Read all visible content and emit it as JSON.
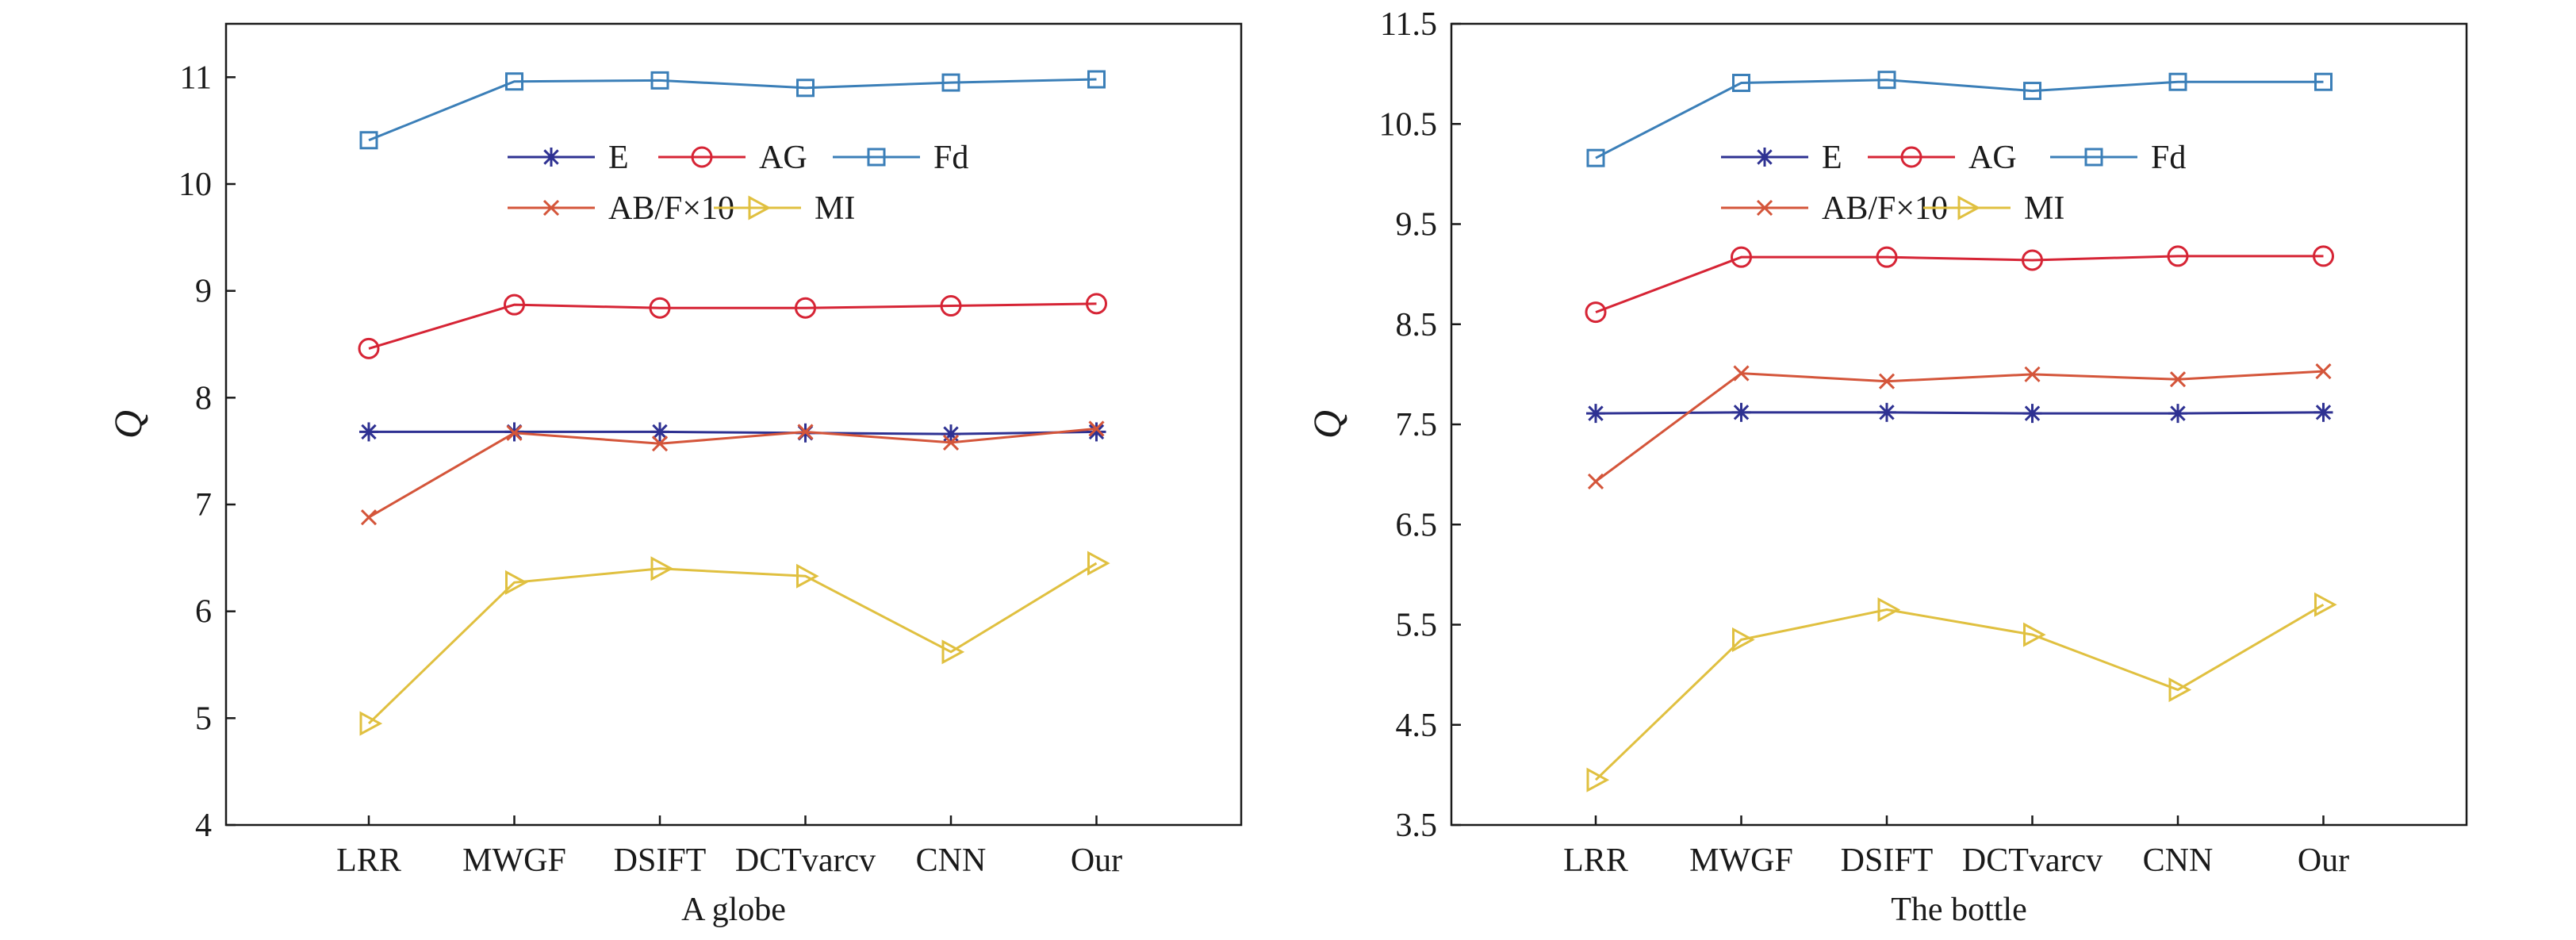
{
  "chart_data": [
    {
      "type": "line",
      "xlabel": "A globe",
      "ylabel": "Q",
      "categories": [
        "LRR",
        "MWGF",
        "DSIFT",
        "DCTvarcv",
        "CNN",
        "Our"
      ],
      "ylim": [
        4,
        11.5
      ],
      "yticks": [
        "4",
        "5",
        "6",
        "7",
        "8",
        "9",
        "10",
        "11"
      ],
      "ytick_values": [
        4,
        5,
        6,
        7,
        8,
        9,
        10,
        11
      ],
      "grid": false,
      "legend_position": "top-center",
      "series": [
        {
          "name": "E",
          "color": "#2e3192",
          "marker": "asterisk",
          "values": [
            7.68,
            7.68,
            7.68,
            7.67,
            7.66,
            7.68
          ]
        },
        {
          "name": "AG",
          "color": "#d62435",
          "marker": "circle",
          "values": [
            8.46,
            8.87,
            8.84,
            8.84,
            8.86,
            8.88
          ]
        },
        {
          "name": "Fd",
          "color": "#3b7fb8",
          "marker": "square",
          "values": [
            10.41,
            10.96,
            10.97,
            10.9,
            10.95,
            10.98
          ]
        },
        {
          "name": "AB/F×10",
          "color": "#d4553a",
          "marker": "x",
          "values": [
            6.88,
            7.67,
            7.57,
            7.68,
            7.58,
            7.71
          ]
        },
        {
          "name": "MI",
          "color": "#e0c040",
          "marker": "triangle-right",
          "values": [
            4.95,
            6.27,
            6.4,
            6.33,
            5.62,
            6.45
          ]
        }
      ]
    },
    {
      "type": "line",
      "xlabel": "The bottle",
      "ylabel": "Q",
      "categories": [
        "LRR",
        "MWGF",
        "DSIFT",
        "DCTvarcv",
        "CNN",
        "Our"
      ],
      "ylim": [
        3.5,
        11.5
      ],
      "yticks": [
        "3.5",
        "4.5",
        "5.5",
        "6.5",
        "7.5",
        "8.5",
        "9.5",
        "10.5",
        "11.5"
      ],
      "ytick_values": [
        3.5,
        4.5,
        5.5,
        6.5,
        7.5,
        8.5,
        9.5,
        10.5,
        11.5
      ],
      "grid": false,
      "legend_position": "top-center",
      "series": [
        {
          "name": "E",
          "color": "#2e3192",
          "marker": "asterisk",
          "values": [
            7.61,
            7.62,
            7.62,
            7.61,
            7.61,
            7.62
          ]
        },
        {
          "name": "AG",
          "color": "#d62435",
          "marker": "circle",
          "values": [
            8.62,
            9.17,
            9.17,
            9.14,
            9.18,
            9.18
          ]
        },
        {
          "name": "Fd",
          "color": "#3b7fb8",
          "marker": "square",
          "values": [
            10.16,
            10.91,
            10.94,
            10.83,
            10.92,
            10.92
          ]
        },
        {
          "name": "AB/F×10",
          "color": "#d4553a",
          "marker": "x",
          "values": [
            6.93,
            8.01,
            7.93,
            8.0,
            7.95,
            8.03
          ]
        },
        {
          "name": "MI",
          "color": "#e0c040",
          "marker": "triangle-right",
          "values": [
            3.95,
            5.35,
            5.65,
            5.4,
            4.85,
            5.7
          ]
        }
      ]
    }
  ]
}
